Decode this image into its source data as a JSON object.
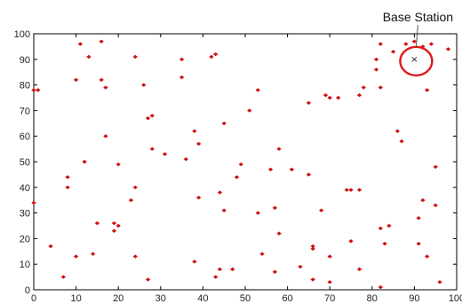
{
  "chart_data": {
    "type": "scatter",
    "title": "",
    "xlabel": "",
    "ylabel": "",
    "xlim": [
      0,
      100
    ],
    "ylim": [
      0,
      100
    ],
    "grid": false,
    "x_ticks": [
      0,
      10,
      20,
      30,
      40,
      50,
      60,
      70,
      80,
      90,
      100
    ],
    "y_ticks": [
      0,
      10,
      20,
      30,
      40,
      50,
      60,
      70,
      80,
      90,
      100
    ],
    "marker_color": "#d01010",
    "series": [
      {
        "points": [
          [
            11,
            96
          ],
          [
            16,
            97
          ],
          [
            13,
            91
          ],
          [
            24,
            91
          ],
          [
            35,
            90
          ],
          [
            43,
            92
          ],
          [
            42,
            91
          ],
          [
            10,
            82
          ],
          [
            16,
            82
          ],
          [
            17,
            79
          ],
          [
            26,
            80
          ],
          [
            35,
            83
          ],
          [
            53,
            78
          ],
          [
            0,
            78
          ],
          [
            27,
            67
          ],
          [
            28,
            68
          ],
          [
            45,
            65
          ],
          [
            51,
            70
          ],
          [
            17,
            60
          ],
          [
            38,
            62
          ],
          [
            39,
            57
          ],
          [
            36,
            51
          ],
          [
            31,
            53
          ],
          [
            28,
            55
          ],
          [
            12,
            50
          ],
          [
            20,
            49
          ],
          [
            49,
            49
          ],
          [
            48,
            44
          ],
          [
            56,
            47
          ],
          [
            58,
            55
          ],
          [
            61,
            47
          ],
          [
            65,
            45
          ],
          [
            8,
            44
          ],
          [
            8,
            40
          ],
          [
            24,
            40
          ],
          [
            23,
            35
          ],
          [
            0,
            34
          ],
          [
            44,
            38
          ],
          [
            45,
            31
          ],
          [
            39,
            36
          ],
          [
            57,
            32
          ],
          [
            68,
            31
          ],
          [
            74,
            39
          ],
          [
            77,
            39
          ],
          [
            15,
            26
          ],
          [
            19,
            26
          ],
          [
            20,
            25
          ],
          [
            19,
            23
          ],
          [
            58,
            22
          ],
          [
            53,
            30
          ],
          [
            4,
            17
          ],
          [
            10,
            13
          ],
          [
            24,
            13
          ],
          [
            14,
            14
          ],
          [
            38,
            11
          ],
          [
            44,
            8
          ],
          [
            47,
            8
          ],
          [
            7,
            5
          ],
          [
            27,
            4
          ],
          [
            43,
            5
          ],
          [
            54,
            14
          ],
          [
            57,
            7
          ],
          [
            63,
            9
          ],
          [
            66,
            16
          ],
          [
            66,
            17
          ],
          [
            70,
            13
          ],
          [
            75,
            19
          ],
          [
            77,
            8
          ],
          [
            70,
            3
          ],
          [
            66,
            4
          ],
          [
            82,
            1
          ],
          [
            83,
            18
          ],
          [
            82,
            24
          ],
          [
            84,
            25
          ],
          [
            91,
            28
          ],
          [
            91,
            18
          ],
          [
            93,
            13
          ],
          [
            95,
            48
          ],
          [
            96,
            3
          ],
          [
            65,
            73
          ],
          [
            69,
            76
          ],
          [
            70,
            75
          ],
          [
            72,
            75
          ],
          [
            77,
            76
          ],
          [
            78,
            79
          ],
          [
            82,
            79
          ],
          [
            81,
            90
          ],
          [
            81,
            86
          ],
          [
            85,
            93
          ],
          [
            82,
            96
          ],
          [
            90,
            97
          ],
          [
            88,
            96
          ],
          [
            92,
            95
          ],
          [
            94,
            96
          ],
          [
            93,
            78
          ],
          [
            86,
            62
          ],
          [
            87,
            58
          ],
          [
            75,
            39
          ],
          [
            95,
            33
          ],
          [
            92,
            35
          ],
          [
            1,
            78
          ],
          [
            98,
            94
          ]
        ]
      }
    ],
    "annotation": {
      "label": "Base Station",
      "point": [
        90,
        90
      ]
    }
  }
}
